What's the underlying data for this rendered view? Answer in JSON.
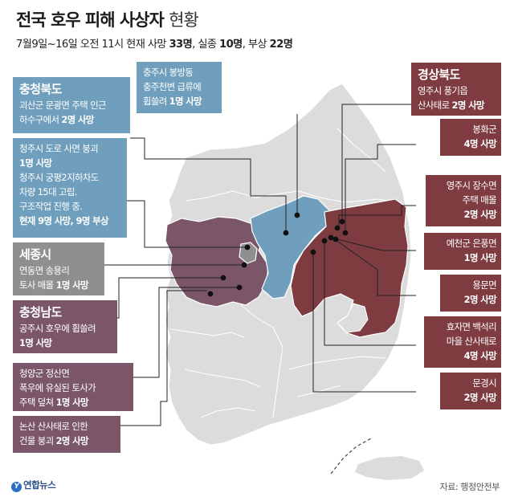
{
  "title": {
    "main": "전국 호우 피해 사상자",
    "suffix": "현황"
  },
  "subtitle": {
    "prefix": "7월9일~16일 오전 11시 현재 사망 ",
    "deaths": "33명",
    "sep1": ", 실종 ",
    "missing": "10명",
    "sep2": ", 부상 ",
    "injured": "22명"
  },
  "colors": {
    "chungbuk": "#6f9fbd",
    "gyeongbuk": "#7e3b40",
    "sejong": "#8f8f8f",
    "chungnam": "#7b5668",
    "land": "#dcdcdc",
    "border": "#ffffff"
  },
  "boxes": {
    "chungju": {
      "lines": [
        "충주시 봉방동",
        "충주천변 급류에"
      ],
      "last_plain": "휩쓸려 ",
      "last_emph": "1명 사망"
    },
    "chungbuk_goesan": {
      "head": "충청북도",
      "lines": [
        "괴산군 문광면 주택 인근"
      ],
      "last_plain": "하수구에서 ",
      "last_emph": "2명 사망"
    },
    "cheongju": {
      "l1": "청주시 도로 사면 붕괴",
      "l2": "1명 사망",
      "l3": "청주시 궁평2지하차도",
      "l4": "차량 15대 고립.",
      "l5": "구조작업 진행 중.",
      "l6": "현재 9명 사망, 9명 부상"
    },
    "sejong": {
      "head": "세종시",
      "lines": [
        "연동면 송용리"
      ],
      "last_plain": "토사 매몰 ",
      "last_emph": "1명 사망"
    },
    "chungnam_gongju": {
      "head": "충청남도",
      "lines": [
        "공주시 호우에 휩쓸려"
      ],
      "last_emph": "1명 사망"
    },
    "cheongyang": {
      "lines": [
        "청양군 정산면",
        "폭우에 유실된 토사가"
      ],
      "last_plain": "주택 덮쳐 ",
      "last_emph": "1명 사망"
    },
    "nonsan": {
      "lines": [
        "논산 산사태로 인한"
      ],
      "last_plain": "건물 붕괴 ",
      "last_emph": "2명 사망"
    },
    "gyeongbuk_yeongju": {
      "head": "경상북도",
      "lines": [
        "영주시 풍기읍"
      ],
      "last_plain": "산사태로 ",
      "last_emph": "2명 사망"
    },
    "bonghwa": {
      "lines": [
        "봉화군"
      ],
      "last_emph": "4명 사망"
    },
    "yeongju_jangsu": {
      "lines": [
        "영주시 장수면",
        "주택 매몰"
      ],
      "last_emph": "2명 사망"
    },
    "yecheon": {
      "lines": [
        "예천군 은풍면"
      ],
      "last_emph": "1명 사망"
    },
    "yongmun": {
      "lines": [
        "용문면"
      ],
      "last_emph": "2명 사망"
    },
    "hyoja": {
      "lines": [
        "효자면 백석리",
        "마을 산사태로"
      ],
      "last_emph": "4명 사망"
    },
    "mungyeong": {
      "lines": [
        "문경시"
      ],
      "last_emph": "2명 사망"
    }
  },
  "source": "자료: 행정안전부",
  "logo": "연합뉴스"
}
